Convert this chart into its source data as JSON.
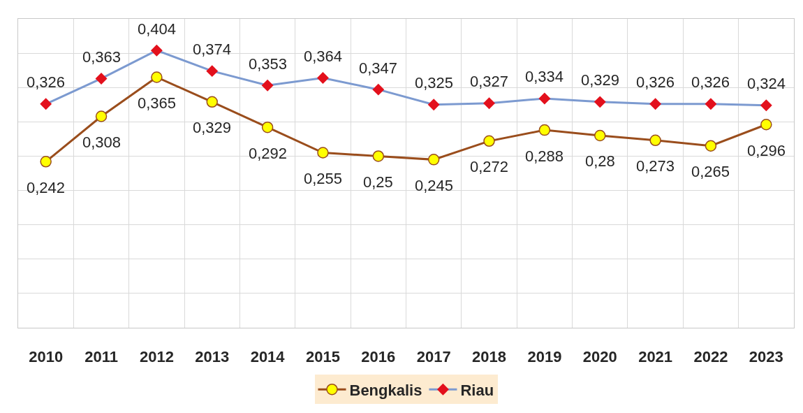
{
  "chart_data": {
    "type": "line",
    "categories": [
      "2010",
      "2011",
      "2012",
      "2013",
      "2014",
      "2015",
      "2016",
      "2017",
      "2018",
      "2019",
      "2020",
      "2021",
      "2022",
      "2023"
    ],
    "series": [
      {
        "name": "Bengkalis",
        "color": "#9a4d1c",
        "colors": [
          "#ffff00",
          "#ffff00",
          "#ffff00",
          "#ffff00",
          "#ffff00",
          "#ffff00",
          "#ffff00",
          "#ffff00",
          "#ffff00",
          "#ffff00",
          "#ffff00",
          "#ffff00",
          "#ffff00",
          "#ffff00"
        ],
        "marker": "circle",
        "values": [
          0.242,
          0.308,
          0.365,
          0.329,
          0.292,
          0.255,
          0.25,
          0.245,
          0.272,
          0.288,
          0.28,
          0.273,
          0.265,
          0.296
        ],
        "value_labels": [
          "0,242",
          "0,308",
          "0,365",
          "0,329",
          "0,292",
          "0,255",
          "0,25",
          "0,245",
          "0,272",
          "0,288",
          "0,28",
          "0,273",
          "0,265",
          "0,296"
        ]
      },
      {
        "name": "Riau",
        "color": "#7c9ad0",
        "colors": [
          "#e3101c",
          "#e3101c",
          "#e3101c",
          "#e3101c",
          "#e3101c",
          "#e3101c",
          "#e3101c",
          "#e3101c",
          "#e3101c",
          "#e3101c",
          "#e3101c",
          "#e3101c",
          "#e3101c",
          "#e3101c"
        ],
        "marker": "diamond",
        "values": [
          0.326,
          0.363,
          0.404,
          0.374,
          0.353,
          0.364,
          0.347,
          0.325,
          0.327,
          0.334,
          0.329,
          0.326,
          0.326,
          0.324
        ],
        "value_labels": [
          "0,326",
          "0,363",
          "0,404",
          "0,374",
          "0,353",
          "0,364",
          "0,347",
          "0,325",
          "0,327",
          "0,334",
          "0,329",
          "0,326",
          "0,326",
          "0,324"
        ]
      }
    ],
    "ylim": [
      0,
      0.45
    ],
    "yticks": [
      {
        "value": 0.05,
        "label": null
      },
      {
        "value": 0.1,
        "label": null
      },
      {
        "value": 0.15,
        "label": null
      },
      {
        "value": 0.2,
        "label": null
      },
      {
        "value": 0.25,
        "label": null
      },
      {
        "value": 0.3,
        "label": null
      },
      {
        "value": 0.35,
        "label": null
      },
      {
        "value": 0.4,
        "label": null
      }
    ],
    "tick_labels": "x",
    "grid": true,
    "legend": "bottom"
  }
}
